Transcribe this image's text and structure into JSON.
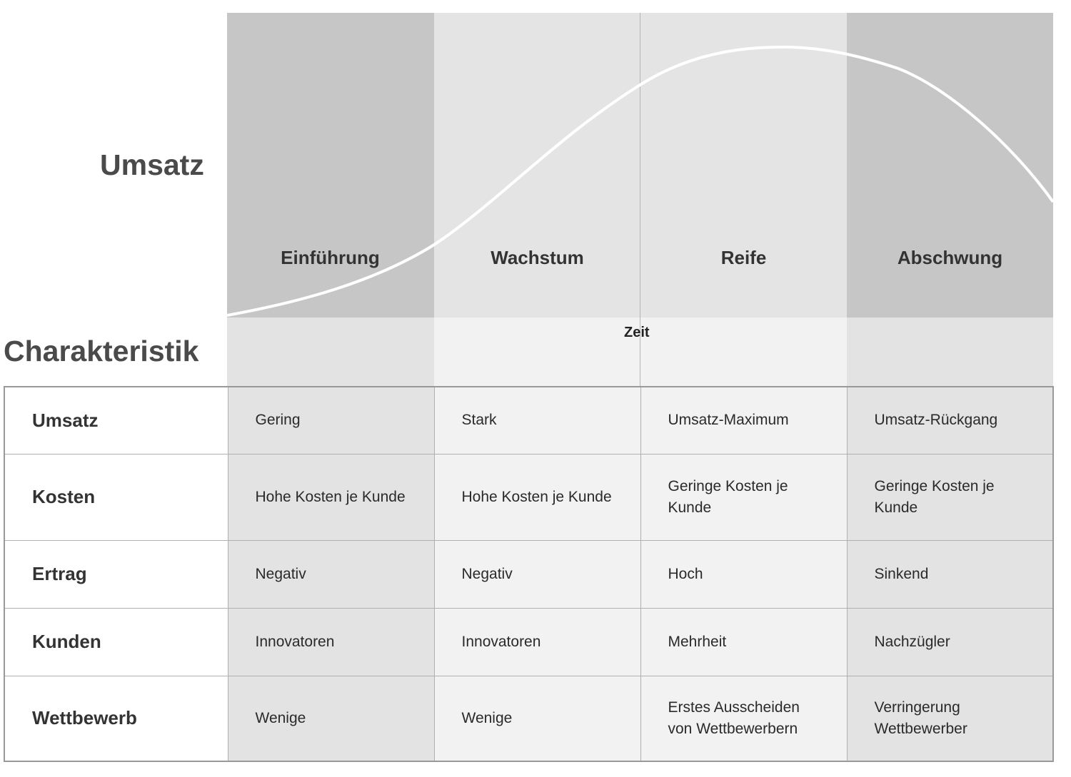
{
  "labels": {
    "umsatz_axis": "Umsatz",
    "charakteristik": "Charakteristik",
    "zeit": "Zeit"
  },
  "phases": [
    {
      "label": "Einführung"
    },
    {
      "label": "Wachstum"
    },
    {
      "label": "Reife"
    },
    {
      "label": "Abschwung"
    }
  ],
  "colors": {
    "phase_dark": "#c6c6c6",
    "phase_light": "#e4e4e4",
    "zeit_dark": "#e3e3e3",
    "zeit_light": "#f2f2f2",
    "curve": "#ffffff"
  },
  "table": {
    "rows": [
      {
        "label": "Umsatz",
        "cells": [
          "Gering",
          "Stark",
          "Umsatz-Maximum",
          "Umsatz-Rückgang"
        ]
      },
      {
        "label": "Kosten",
        "cells": [
          "Hohe Kosten je Kunde",
          "Hohe Kosten je Kunde",
          "Geringe Kosten je Kunde",
          "Geringe Kosten je Kunde"
        ]
      },
      {
        "label": "Ertrag",
        "cells": [
          "Negativ",
          "Negativ",
          "Hoch",
          "Sinkend"
        ]
      },
      {
        "label": "Kunden",
        "cells": [
          "Innovatoren",
          "Innovatoren",
          "Mehrheit",
          "Nachzügler"
        ]
      },
      {
        "label": "Wettbewerb",
        "cells": [
          "Wenige",
          "Wenige",
          "Erstes Ausscheiden von Wettbewerbern",
          "Verringerung Wettbewerber"
        ]
      }
    ]
  }
}
